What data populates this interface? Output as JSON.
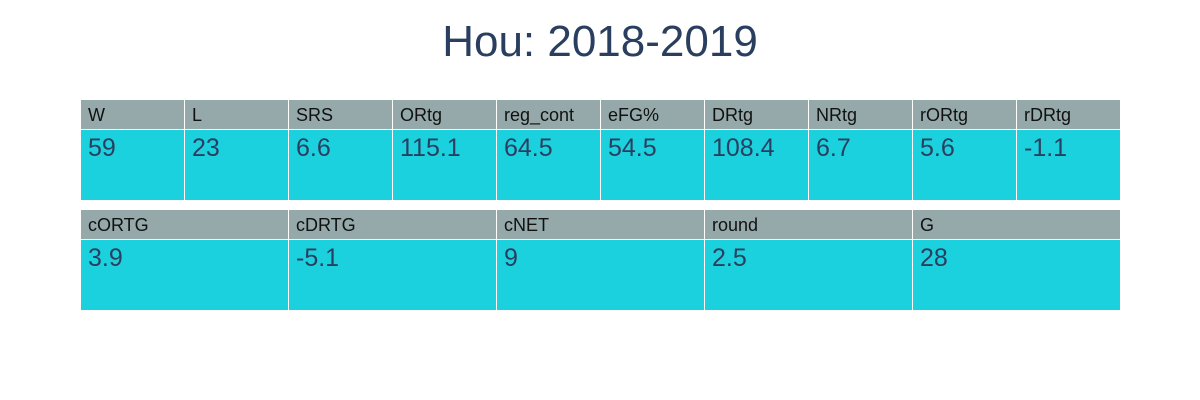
{
  "title": "Hou: 2018-2019",
  "chart_data": [
    {
      "type": "table",
      "title": "Hou: 2018-2019",
      "columns": [
        "W",
        "L",
        "SRS",
        "ORtg",
        "reg_cont",
        "eFG%",
        "DRtg",
        "NRtg",
        "rORtg",
        "rDRtg"
      ],
      "rows": [
        [
          "59",
          "23",
          "6.6",
          "115.1",
          "64.5",
          "54.5",
          "108.4",
          "6.7",
          "5.6",
          "-1.1"
        ]
      ]
    },
    {
      "type": "table",
      "columns": [
        "cORTG",
        "cDRTG",
        "cNET",
        "round",
        "G"
      ],
      "rows": [
        [
          "3.9",
          "-5.1",
          "9",
          "2.5",
          "28"
        ]
      ]
    }
  ],
  "colors": {
    "header_bg": "#95a9ab",
    "cell_bg": "#1cd1de",
    "title_text": "#2a3f5f",
    "value_text": "#2a3f5f"
  }
}
